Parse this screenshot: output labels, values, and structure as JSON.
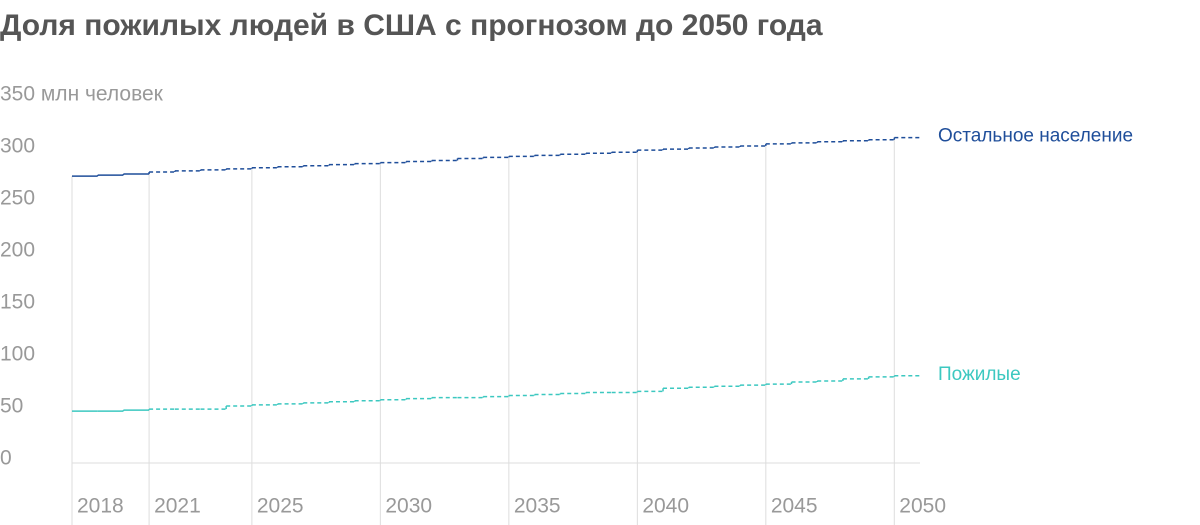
{
  "chart_data": {
    "type": "step",
    "title": "Доля пожилых людей в США с прогнозом до 2050 года",
    "x": [
      2018,
      2019,
      2020,
      2021,
      2022,
      2023,
      2024,
      2025,
      2026,
      2027,
      2028,
      2029,
      2030,
      2031,
      2032,
      2033,
      2034,
      2035,
      2036,
      2037,
      2038,
      2039,
      2040,
      2041,
      2042,
      2043,
      2044,
      2045,
      2046,
      2047,
      2048,
      2049,
      2050
    ],
    "series": [
      {
        "name": "Остальное население",
        "color": "#1f4e9a",
        "values": [
          272,
          273,
          274,
          276,
          277,
          278,
          279,
          280,
          281,
          282,
          283,
          284,
          285,
          286,
          287,
          289,
          290,
          291,
          292,
          293,
          294,
          295,
          297,
          298,
          299,
          300,
          301,
          303,
          304,
          305,
          306,
          307,
          309
        ]
      },
      {
        "name": "Пожилые",
        "color": "#3cc8c0",
        "values": [
          46,
          46,
          47,
          48,
          48,
          48,
          51,
          52,
          53,
          54,
          55,
          56,
          57,
          58,
          59,
          59,
          60,
          61,
          62,
          63,
          64,
          64,
          65,
          68,
          69,
          70,
          71,
          72,
          74,
          75,
          77,
          79,
          80
        ]
      }
    ],
    "dashed_from": 2021,
    "xlim": [
      2018,
      2051
    ],
    "xticks": [
      2018,
      2021,
      2025,
      2030,
      2035,
      2040,
      2045,
      2050
    ],
    "ylim": [
      0,
      350
    ],
    "yticks": [
      0,
      50,
      100,
      150,
      200,
      250,
      300,
      {
        "value": 350,
        "label": "350 млн человек"
      }
    ]
  }
}
